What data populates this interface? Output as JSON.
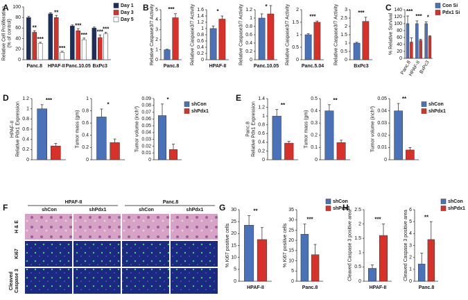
{
  "chart_data": [
    {
      "panel": "A",
      "type": "bar",
      "ylabel": [
        "Relative Cell Proliferation",
        "(% of control)"
      ],
      "categories": [
        "Panc.8",
        "HPAF-II",
        "Panc.10.05",
        "BxPc3"
      ],
      "series": [
        {
          "name": "Day 1",
          "color": "#1c2f5c",
          "values": [
            80,
            87,
            64,
            60
          ],
          "errors": [
            2,
            2,
            2,
            2
          ]
        },
        {
          "name": "Day 3",
          "color": "#d8312a",
          "values": [
            52,
            80,
            55,
            42
          ],
          "errors": [
            3,
            4,
            4,
            5
          ],
          "significance": [
            "**",
            "**",
            "***",
            "***"
          ]
        },
        {
          "name": "Day 5",
          "color": "#ffffff",
          "values": [
            31,
            14,
            38,
            49
          ],
          "errors": [
            2,
            2,
            3,
            3
          ],
          "significance": [
            "***",
            "***",
            "***",
            "***"
          ]
        }
      ],
      "ylim": [
        0,
        100
      ],
      "yticks": [
        0,
        20,
        40,
        60,
        80,
        100
      ],
      "legend": "right"
    },
    {
      "panel": "B",
      "type": "bar",
      "ylabel": [
        "Relative Caspase3/7 Activity"
      ],
      "categories": [
        "Panc.8"
      ],
      "series": [
        {
          "color": "#4a72b8",
          "values": [
            1
          ],
          "errors": [
            0.05
          ]
        },
        {
          "color": "#d8312a",
          "values": [
            4.2
          ],
          "errors": [
            0.4
          ]
        }
      ],
      "significance": [
        "***"
      ],
      "ylim": [
        0,
        5
      ],
      "yticks": [
        0,
        1,
        2,
        3,
        4,
        5
      ]
    },
    {
      "type": "bar",
      "ylabel": [
        "Relative Caspase3/7 Activity"
      ],
      "categories": [
        "HPAF-II"
      ],
      "series": [
        {
          "color": "#4a72b8",
          "values": [
            1
          ],
          "errors": [
            0.08
          ]
        },
        {
          "color": "#d8312a",
          "values": [
            1.3
          ],
          "errors": [
            0.1
          ]
        }
      ],
      "significance": [
        "*"
      ],
      "ylim": [
        0,
        1.6
      ],
      "yticks": [
        0,
        0.2,
        0.4,
        0.6,
        0.8,
        1,
        1.2,
        1.4,
        1.6
      ]
    },
    {
      "type": "bar",
      "ylabel": [
        "Relative Caspase3/7 Activity"
      ],
      "categories": [
        "Panc.10.05"
      ],
      "series": [
        {
          "color": "#4a72b8",
          "values": [
            1
          ],
          "errors": [
            0.1
          ]
        },
        {
          "color": "#d8312a",
          "values": [
            1.1
          ],
          "errors": [
            0.2
          ]
        }
      ],
      "significance": [
        "*"
      ],
      "ylim": [
        0,
        1.2
      ],
      "yticks": [
        0,
        0.2,
        0.4,
        0.6,
        0.8,
        1,
        1.2
      ]
    },
    {
      "type": "bar",
      "ylabel": [
        "Relative Caspase3/7 Activity"
      ],
      "categories": [
        "Panc.5.04"
      ],
      "series": [
        {
          "color": "#4a72b8",
          "values": [
            1
          ],
          "errors": [
            0.04
          ]
        },
        {
          "color": "#d8312a",
          "values": [
            1.5
          ],
          "errors": [
            0.05
          ]
        }
      ],
      "significance": [
        "***"
      ],
      "ylim": [
        0,
        2
      ],
      "yticks": [
        0,
        0.5,
        1,
        1.5,
        2
      ]
    },
    {
      "type": "bar",
      "ylabel": [
        "Relative Caspase3/7 Activity"
      ],
      "categories": [
        "BxPc3"
      ],
      "series": [
        {
          "color": "#4a72b8",
          "values": [
            1
          ],
          "errors": [
            0.05
          ]
        },
        {
          "color": "#d8312a",
          "values": [
            2.3
          ],
          "errors": [
            0.25
          ]
        }
      ],
      "significance": [
        "***"
      ],
      "ylim": [
        0,
        3
      ],
      "yticks": [
        0,
        0.5,
        1,
        1.5,
        2,
        2.5,
        3
      ]
    },
    {
      "panel": "C",
      "type": "bar",
      "ylabel": [
        "% Relative Survival"
      ],
      "categories": [
        "Panc.8",
        "HPAF-II",
        "BxPc3"
      ],
      "rotate_labels": true,
      "series": [
        {
          "name": "Con Si",
          "color": "#4a72b8",
          "values": [
            100,
            100,
            100
          ],
          "errors": [
            22,
            8,
            5
          ]
        },
        {
          "name": "Pdx1 Si",
          "color": "#d8312a",
          "values": [
            47,
            52,
            63
          ],
          "errors": [
            12,
            3,
            2
          ]
        }
      ],
      "significance": [
        "***",
        "***",
        "*"
      ],
      "ylim": [
        0,
        140
      ],
      "yticks": [
        0,
        20,
        40,
        60,
        80,
        100,
        120,
        140
      ],
      "legend": "right"
    },
    {
      "panel": "D",
      "type": "bar",
      "ylabel": [
        "HPAF-II",
        "Relative Pdx1 Expression"
      ],
      "categories": [
        null
      ],
      "series": [
        {
          "color": "#4a72b8",
          "values": [
            1
          ],
          "errors": [
            0.08
          ]
        },
        {
          "color": "#d8312a",
          "values": [
            0.27
          ],
          "errors": [
            0.05
          ]
        }
      ],
      "significance": [
        "***"
      ],
      "ylim": [
        0,
        1.2
      ],
      "yticks": [
        0,
        0.2,
        0.4,
        0.6,
        0.8,
        1,
        1.2
      ]
    },
    {
      "type": "bar",
      "ylabel": [
        "Tumor mass (gm)"
      ],
      "categories": [
        null
      ],
      "series": [
        {
          "color": "#4a72b8",
          "values": [
            0.7
          ],
          "errors": [
            0.13
          ]
        },
        {
          "color": "#d8312a",
          "values": [
            0.28
          ],
          "errors": [
            0.06
          ]
        }
      ],
      "significance": [
        "*"
      ],
      "ylim": [
        0,
        1
      ],
      "yticks": [
        0,
        0.2,
        0.4,
        0.6,
        0.8,
        1
      ]
    },
    {
      "type": "bar",
      "ylabel": [
        "Tumor volume (inch³)"
      ],
      "categories": [
        null
      ],
      "series": [
        {
          "name": "shCon",
          "color": "#4a72b8",
          "values": [
            0.065
          ],
          "errors": [
            0.017
          ]
        },
        {
          "name": "shPdx1",
          "color": "#d8312a",
          "values": [
            0.015
          ],
          "errors": [
            0.008
          ]
        }
      ],
      "significance": [
        "*"
      ],
      "ylim": [
        0,
        0.09
      ],
      "yticks": [
        0,
        0.01,
        0.02,
        0.03,
        0.04,
        0.05,
        0.06,
        0.07,
        0.08,
        0.09
      ],
      "legend": "right"
    },
    {
      "panel": "E",
      "type": "bar",
      "ylabel": [
        "Panc.8",
        "Relative Pdx1 Expression"
      ],
      "categories": [
        null
      ],
      "series": [
        {
          "color": "#4a72b8",
          "values": [
            1
          ],
          "errors": [
            0.15
          ]
        },
        {
          "color": "#d8312a",
          "values": [
            0.38
          ],
          "errors": [
            0.04
          ]
        }
      ],
      "significance": [
        "**"
      ],
      "ylim": [
        0,
        1.4
      ],
      "yticks": [
        0,
        0.2,
        0.4,
        0.6,
        0.8,
        1,
        1.2,
        1.4
      ]
    },
    {
      "type": "bar",
      "ylabel": [
        "Tumor mass (gm)"
      ],
      "categories": [
        null
      ],
      "series": [
        {
          "color": "#4a72b8",
          "values": [
            0.4
          ],
          "errors": [
            0.05
          ]
        },
        {
          "color": "#d8312a",
          "values": [
            0.14
          ],
          "errors": [
            0.02
          ]
        }
      ],
      "significance": [
        "**"
      ],
      "ylim": [
        0,
        0.5
      ],
      "yticks": [
        0,
        0.1,
        0.2,
        0.3,
        0.4,
        0.5
      ]
    },
    {
      "type": "bar",
      "ylabel": [
        "Tumor volume (inch³)"
      ],
      "categories": [
        null
      ],
      "series": [
        {
          "name": "shCon",
          "color": "#4a72b8",
          "values": [
            0.04
          ],
          "errors": [
            0.006
          ]
        },
        {
          "name": "shPdx1",
          "color": "#d8312a",
          "values": [
            0.008
          ],
          "errors": [
            0.002
          ]
        }
      ],
      "significance": [
        "**"
      ],
      "ylim": [
        0,
        0.05
      ],
      "yticks": [
        0,
        0.01,
        0.02,
        0.03,
        0.04,
        0.05
      ],
      "legend": "right"
    },
    {
      "panel": "G",
      "type": "bar",
      "ylabel": [
        "% Ki67 positive cells"
      ],
      "categories": [
        "HPAF-II"
      ],
      "series": [
        {
          "color": "#4a72b8",
          "values": [
            23.5
          ],
          "errors": [
            4
          ]
        },
        {
          "color": "#d8312a",
          "values": [
            17.5
          ],
          "errors": [
            5
          ]
        }
      ],
      "significance": [
        "**"
      ],
      "ylim": [
        0,
        30
      ],
      "yticks": [
        0,
        5,
        10,
        15,
        20,
        25,
        30
      ]
    },
    {
      "type": "bar",
      "ylabel": [
        "% Ki67 positive cells"
      ],
      "categories": [
        "Panc.8"
      ],
      "series": [
        {
          "name": "shCon",
          "color": "#4a72b8",
          "values": [
            23
          ],
          "errors": [
            5
          ]
        },
        {
          "name": "shPdx1",
          "color": "#d8312a",
          "values": [
            13
          ],
          "errors": [
            5
          ]
        }
      ],
      "significance": [
        "***"
      ],
      "ylim": [
        0,
        35
      ],
      "yticks": [
        0,
        5,
        10,
        15,
        20,
        25,
        30,
        35
      ],
      "legend": "right"
    },
    {
      "panel": "H",
      "type": "bar",
      "ylabel": [
        "Cleaved Caspase 3 positive area"
      ],
      "categories": [
        "HPAF-II"
      ],
      "series": [
        {
          "color": "#4a72b8",
          "values": [
            0.45
          ],
          "errors": [
            0.12
          ]
        },
        {
          "color": "#d8312a",
          "values": [
            1.6
          ],
          "errors": [
            0.4
          ]
        }
      ],
      "significance": [
        "***"
      ],
      "ylim": [
        0,
        2.5
      ],
      "yticks": [
        0,
        0.5,
        1,
        1.5,
        2,
        2.5
      ]
    },
    {
      "type": "bar",
      "ylabel": [
        "Cleaved Caspase 3 positive area"
      ],
      "categories": [
        "Panc.8"
      ],
      "series": [
        {
          "name": "shCon",
          "color": "#4a72b8",
          "values": [
            1.45
          ],
          "errors": [
            0.9
          ]
        },
        {
          "name": "shPdx1",
          "color": "#d8312a",
          "values": [
            3.5
          ],
          "errors": [
            1.5
          ]
        }
      ],
      "significance": [
        "**"
      ],
      "ylim": [
        0,
        6
      ],
      "yticks": [
        0,
        1,
        2,
        3,
        4,
        5,
        6
      ],
      "legend": "right"
    }
  ],
  "image_panel": {
    "panel": "F",
    "groups": [
      {
        "label": "HPAF-II",
        "columns": [
          "shCon",
          "shPdx1"
        ]
      },
      {
        "label": "Panc.8",
        "columns": [
          "shCon",
          "shPdx1"
        ]
      }
    ],
    "rows": [
      [
        "H & E"
      ],
      [
        "Ki67"
      ],
      [
        "Cleaved",
        "Caspase 3"
      ]
    ]
  }
}
